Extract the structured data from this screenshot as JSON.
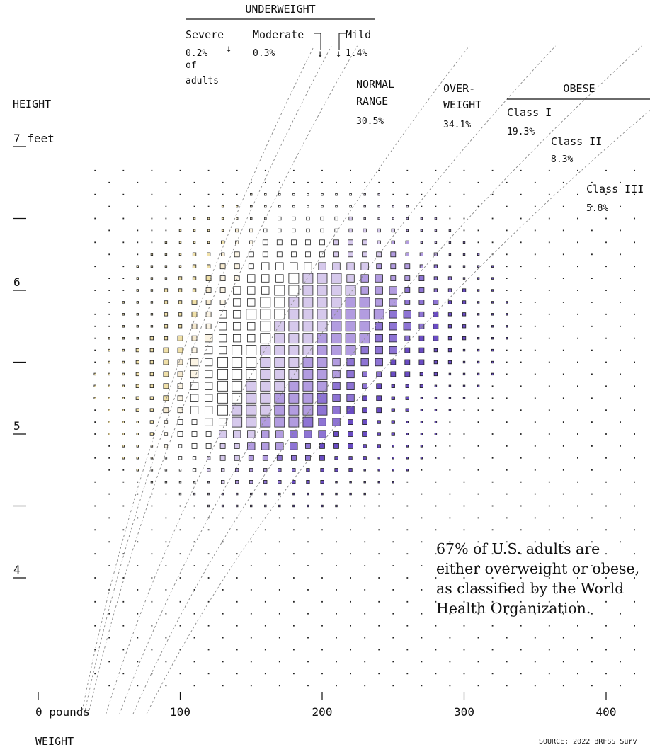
{
  "chart_data": {
    "type": "scatter",
    "xlabel": "WEIGHT",
    "ylabel": "HEIGHT",
    "x_unit_label": "0 pounds",
    "y_top_label": "7 feet",
    "x_ticks": [
      "0 pounds",
      "100",
      "200",
      "300",
      "400"
    ],
    "x_tick_values": [
      0,
      100,
      200,
      300,
      400
    ],
    "y_ticks": [
      "4",
      "5",
      "6",
      "7 feet"
    ],
    "y_tick_values": [
      4,
      5,
      6,
      7
    ],
    "xlim": [
      0,
      430
    ],
    "ylim": [
      3.05,
      7.1
    ],
    "source": "SOURCE: 2022 BRFSS Surv",
    "note": "67% of U.S. adults are either overweight or obese, as classified by the World Health Organization.",
    "underweight_header": "UNDERWEIGHT",
    "obese_header": "OBESE",
    "categories": [
      {
        "name": "Severe",
        "share": "0.2%",
        "extra": [
          "of",
          "adults"
        ],
        "bmi_upper": 16
      },
      {
        "name": "Moderate",
        "share": "0.3%",
        "bmi_upper": 17
      },
      {
        "name": "Mild",
        "share": "1.4%",
        "bmi_upper": 18.5
      },
      {
        "name": [
          "NORMAL",
          "RANGE"
        ],
        "share": "30.5%",
        "bmi_upper": 25
      },
      {
        "name": [
          "OVER-",
          "WEIGHT"
        ],
        "share": "34.1%",
        "bmi_upper": 30
      },
      {
        "name": "Class I",
        "share": "19.3%",
        "bmi_upper": 35
      },
      {
        "name": "Class II",
        "share": "8.3%",
        "bmi_upper": 40
      },
      {
        "name": "Class III",
        "share": "5.8%"
      }
    ],
    "colors": {
      "severe": "#f0e0a8",
      "moderate": "#f6ead0",
      "mild": "#fbf4e4",
      "normal": "#ffffff",
      "overweight": "#d6c9ec",
      "obese1": "#b29ce0",
      "obese2": "#8e74d4",
      "obese3": "#6a4cc4",
      "stroke": "#222222"
    }
  }
}
